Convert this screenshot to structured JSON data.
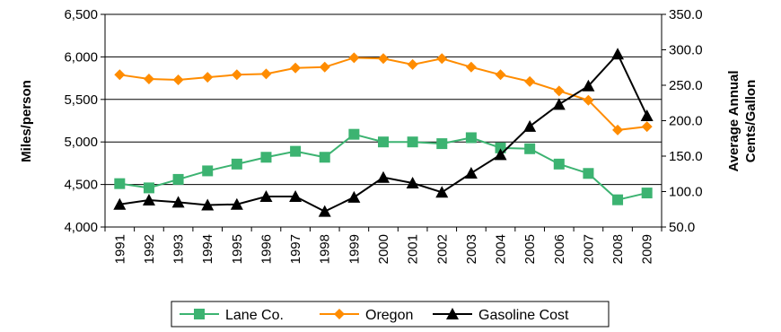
{
  "chart_data": {
    "type": "line",
    "title": "",
    "x": [
      "1991",
      "1992",
      "1993",
      "1994",
      "1995",
      "1996",
      "1997",
      "1998",
      "1999",
      "2000",
      "2001",
      "2002",
      "2003",
      "2004",
      "2005",
      "2006",
      "2007",
      "2008",
      "2009"
    ],
    "ylabel": "Miles/person",
    "ylabel_right_line1": "Average Annual",
    "ylabel_right_line2": "Cents/Gallon",
    "ylim": [
      4000,
      6500
    ],
    "yticks": [
      "4,000",
      "4,500",
      "5,000",
      "5,500",
      "6,000",
      "6,500"
    ],
    "ylim_right": [
      50,
      350
    ],
    "yticks_right": [
      "50.0",
      "100.0",
      "150.0",
      "200.0",
      "250.0",
      "300.0",
      "350.0"
    ],
    "grid": "horizontal",
    "legend_position": "bottom",
    "series": [
      {
        "name": "Lane Co.",
        "axis": "left",
        "color": "#3cb371",
        "marker": "square",
        "values": [
          4510,
          4460,
          4560,
          4660,
          4740,
          4820,
          4890,
          4820,
          5090,
          5000,
          5000,
          4980,
          5050,
          4930,
          4920,
          4740,
          4630,
          4320,
          4400
        ]
      },
      {
        "name": "Oregon",
        "axis": "left",
        "color": "#ff8c00",
        "marker": "diamond",
        "values": [
          5790,
          5740,
          5730,
          5760,
          5790,
          5800,
          5870,
          5880,
          5990,
          5980,
          5910,
          5980,
          5880,
          5790,
          5710,
          5600,
          5490,
          5140,
          5180
        ]
      },
      {
        "name": "Gasoline Cost",
        "axis": "right",
        "color": "#000000",
        "marker": "triangle",
        "values": [
          82,
          88,
          85,
          81,
          82,
          93,
          93,
          72,
          92,
          120,
          112,
          99,
          126,
          152,
          192,
          223,
          249,
          294,
          207
        ]
      }
    ]
  }
}
